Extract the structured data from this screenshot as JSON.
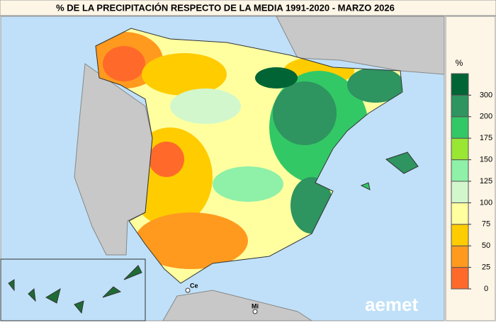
{
  "title": "% DE LA PRECIPITACIÓN RESPECTO DE LA MEDIA 1991-2020 - MARZO 2026",
  "legend": {
    "unit": "%",
    "ticks": [
      0,
      25,
      50,
      75,
      100,
      125,
      150,
      175,
      200,
      300
    ],
    "colors": [
      "#ff6a2a",
      "#ff9a1e",
      "#ffcc00",
      "#ffffa0",
      "#d2f7cc",
      "#8ff0a8",
      "#99e633",
      "#33c866",
      "#2e9460",
      "#006435"
    ]
  },
  "places": [
    "Ce",
    "Mi"
  ],
  "logo": "aemet"
}
